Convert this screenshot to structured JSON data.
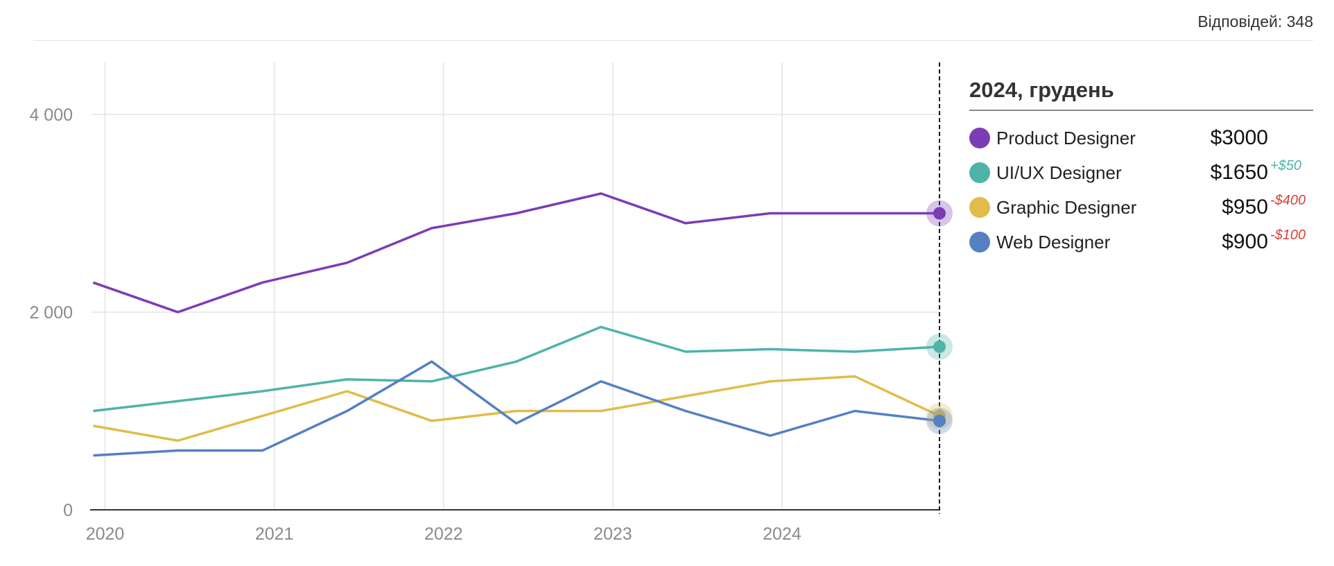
{
  "header": {
    "responses_label": "Відповідей: 348"
  },
  "chart_data": {
    "type": "line",
    "x": [
      2019.93,
      2020.43,
      2020.93,
      2021.43,
      2021.93,
      2022.43,
      2022.93,
      2023.43,
      2023.93,
      2024.43,
      2024.93
    ],
    "xlim": [
      2019.92,
      2024.93
    ],
    "ylim": [
      0,
      4500
    ],
    "x_ticks": [
      2020,
      2021,
      2022,
      2023,
      2024
    ],
    "x_tick_labels": [
      "2020",
      "2021",
      "2022",
      "2023",
      "2024"
    ],
    "y_ticks": [
      0,
      2000,
      4000
    ],
    "y_tick_labels": [
      "0",
      "2 000",
      "4 000"
    ],
    "grid": true,
    "legend_position": "right",
    "series": [
      {
        "name": "Product Designer",
        "color": "#7b3db5",
        "values": [
          2300,
          2000,
          2300,
          2500,
          2850,
          3000,
          3200,
          2900,
          3000,
          3000,
          3000
        ]
      },
      {
        "name": "UI/UX Designer",
        "color": "#4fb3aa",
        "values": [
          1000,
          1100,
          1200,
          1320,
          1300,
          1500,
          1850,
          1600,
          1625,
          1600,
          1650
        ]
      },
      {
        "name": "Graphic Designer",
        "color": "#e0bc4a",
        "values": [
          850,
          700,
          950,
          1200,
          900,
          1000,
          1000,
          1150,
          1300,
          1350,
          950
        ]
      },
      {
        "name": "Web Designer",
        "color": "#5580c2",
        "values": [
          550,
          600,
          600,
          1000,
          1500,
          875,
          1300,
          1000,
          750,
          1000,
          900
        ]
      }
    ]
  },
  "legend": {
    "title": "2024, грудень",
    "items": [
      {
        "name": "Product Designer",
        "color": "#7b3db5",
        "value": "$3000",
        "delta": "",
        "delta_color": "#4fb3aa"
      },
      {
        "name": "UI/UX Designer",
        "color": "#4fb3aa",
        "value": "$1650",
        "delta": "+$50",
        "delta_color": "#4fb3aa"
      },
      {
        "name": "Graphic Designer",
        "color": "#e0bc4a",
        "value": "$950",
        "delta": "-$400",
        "delta_color": "#d9403a"
      },
      {
        "name": "Web Designer",
        "color": "#5580c2",
        "value": "$900",
        "delta": "-$100",
        "delta_color": "#d9403a"
      }
    ]
  }
}
